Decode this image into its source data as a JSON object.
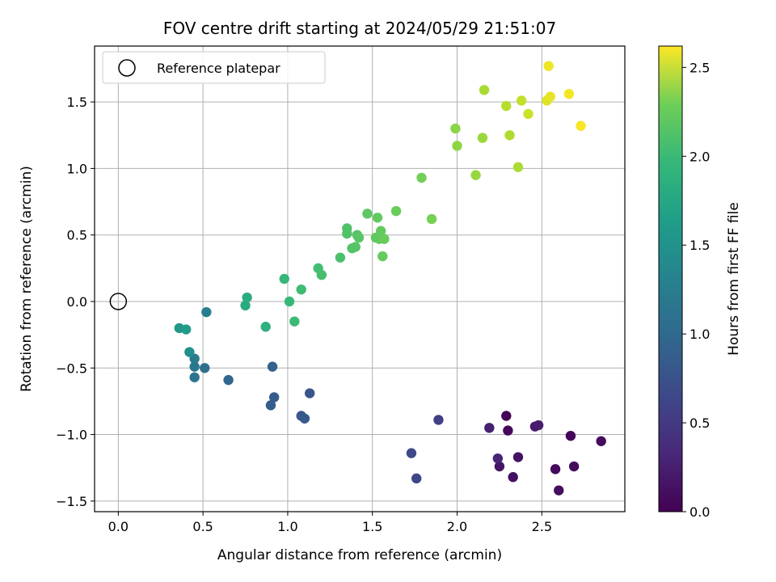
{
  "chart_data": {
    "type": "scatter",
    "title": "FOV centre drift starting at 2024/05/29 21:51:07",
    "xlabel": "Angular distance from reference (arcmin)",
    "ylabel": "Rotation from reference (arcmin)",
    "xlim": [
      -0.14,
      2.99
    ],
    "ylim": [
      -1.58,
      1.92
    ],
    "xticks": [
      0.0,
      0.5,
      1.0,
      1.5,
      2.0,
      2.5
    ],
    "yticks": [
      -1.5,
      -1.0,
      -0.5,
      0.0,
      0.5,
      1.0,
      1.5
    ],
    "grid": true,
    "legend": {
      "placement": "upper-left",
      "label": "Reference platepar"
    },
    "reference_point": {
      "x": 0.0,
      "y": 0.0
    },
    "colorbar": {
      "label": "Hours from first FF file",
      "range": [
        0.0,
        2.62
      ],
      "ticks": [
        0.0,
        0.5,
        1.0,
        1.5,
        2.0,
        2.5
      ],
      "colormap": "viridis"
    },
    "points": [
      {
        "x": 2.29,
        "y": -0.86,
        "c": 0.02
      },
      {
        "x": 2.67,
        "y": -1.01,
        "c": 0.04
      },
      {
        "x": 2.85,
        "y": -1.05,
        "c": 0.07
      },
      {
        "x": 2.3,
        "y": -0.97,
        "c": 0.05
      },
      {
        "x": 2.58,
        "y": -1.26,
        "c": 0.06
      },
      {
        "x": 2.69,
        "y": -1.24,
        "c": 0.08
      },
      {
        "x": 2.6,
        "y": -1.42,
        "c": 0.1
      },
      {
        "x": 2.33,
        "y": -1.32,
        "c": 0.11
      },
      {
        "x": 2.36,
        "y": -1.17,
        "c": 0.13
      },
      {
        "x": 2.25,
        "y": -1.24,
        "c": 0.15
      },
      {
        "x": 2.46,
        "y": -0.94,
        "c": 0.18
      },
      {
        "x": 2.48,
        "y": -0.93,
        "c": 0.21
      },
      {
        "x": 2.19,
        "y": -0.95,
        "c": 0.24
      },
      {
        "x": 2.24,
        "y": -1.18,
        "c": 0.27
      },
      {
        "x": 1.89,
        "y": -0.89,
        "c": 0.5
      },
      {
        "x": 1.76,
        "y": -1.33,
        "c": 0.55
      },
      {
        "x": 1.73,
        "y": -1.14,
        "c": 0.58
      },
      {
        "x": 1.13,
        "y": -0.69,
        "c": 0.7
      },
      {
        "x": 1.08,
        "y": -0.86,
        "c": 0.72
      },
      {
        "x": 1.1,
        "y": -0.88,
        "c": 0.74
      },
      {
        "x": 0.92,
        "y": -0.72,
        "c": 0.76
      },
      {
        "x": 0.9,
        "y": -0.78,
        "c": 0.78
      },
      {
        "x": 0.91,
        "y": -0.49,
        "c": 0.82
      },
      {
        "x": 0.65,
        "y": -0.59,
        "c": 0.85
      },
      {
        "x": 0.51,
        "y": -0.5,
        "c": 0.95
      },
      {
        "x": 0.45,
        "y": -0.57,
        "c": 1.0
      },
      {
        "x": 0.45,
        "y": -0.49,
        "c": 1.05
      },
      {
        "x": 0.45,
        "y": -0.43,
        "c": 1.1
      },
      {
        "x": 0.52,
        "y": -0.08,
        "c": 1.12
      },
      {
        "x": 0.42,
        "y": -0.38,
        "c": 1.3
      },
      {
        "x": 0.36,
        "y": -0.2,
        "c": 1.38
      },
      {
        "x": 0.4,
        "y": -0.21,
        "c": 1.42
      },
      {
        "x": 0.75,
        "y": -0.03,
        "c": 1.6
      },
      {
        "x": 0.76,
        "y": 0.03,
        "c": 1.62
      },
      {
        "x": 0.87,
        "y": -0.19,
        "c": 1.66
      },
      {
        "x": 0.98,
        "y": 0.17,
        "c": 1.75
      },
      {
        "x": 1.01,
        "y": 0.0,
        "c": 1.76
      },
      {
        "x": 1.04,
        "y": -0.15,
        "c": 1.78
      },
      {
        "x": 1.08,
        "y": 0.09,
        "c": 1.8
      },
      {
        "x": 1.18,
        "y": 0.25,
        "c": 1.82
      },
      {
        "x": 1.2,
        "y": 0.2,
        "c": 1.84
      },
      {
        "x": 1.31,
        "y": 0.33,
        "c": 1.86
      },
      {
        "x": 1.35,
        "y": 0.55,
        "c": 1.88
      },
      {
        "x": 1.35,
        "y": 0.51,
        "c": 1.89
      },
      {
        "x": 1.38,
        "y": 0.4,
        "c": 1.9
      },
      {
        "x": 1.4,
        "y": 0.41,
        "c": 1.91
      },
      {
        "x": 1.41,
        "y": 0.5,
        "c": 1.92
      },
      {
        "x": 1.42,
        "y": 0.48,
        "c": 1.93
      },
      {
        "x": 1.47,
        "y": 0.66,
        "c": 1.95
      },
      {
        "x": 1.52,
        "y": 0.48,
        "c": 1.96
      },
      {
        "x": 1.53,
        "y": 0.63,
        "c": 1.97
      },
      {
        "x": 1.54,
        "y": 0.47,
        "c": 1.97
      },
      {
        "x": 1.55,
        "y": 0.53,
        "c": 1.98
      },
      {
        "x": 1.56,
        "y": 0.34,
        "c": 1.99
      },
      {
        "x": 1.57,
        "y": 0.47,
        "c": 2.0
      },
      {
        "x": 1.64,
        "y": 0.68,
        "c": 2.01
      },
      {
        "x": 1.79,
        "y": 0.93,
        "c": 2.05
      },
      {
        "x": 1.85,
        "y": 0.62,
        "c": 2.07
      },
      {
        "x": 1.99,
        "y": 1.3,
        "c": 2.15
      },
      {
        "x": 2.0,
        "y": 1.17,
        "c": 2.17
      },
      {
        "x": 2.11,
        "y": 0.95,
        "c": 2.2
      },
      {
        "x": 2.15,
        "y": 1.23,
        "c": 2.22
      },
      {
        "x": 2.16,
        "y": 1.59,
        "c": 2.27
      },
      {
        "x": 2.29,
        "y": 1.47,
        "c": 2.33
      },
      {
        "x": 2.31,
        "y": 1.25,
        "c": 2.3
      },
      {
        "x": 2.36,
        "y": 1.01,
        "c": 2.28
      },
      {
        "x": 2.38,
        "y": 1.51,
        "c": 2.38
      },
      {
        "x": 2.42,
        "y": 1.41,
        "c": 2.42
      },
      {
        "x": 2.53,
        "y": 1.51,
        "c": 2.5
      },
      {
        "x": 2.54,
        "y": 1.77,
        "c": 2.56
      },
      {
        "x": 2.55,
        "y": 1.54,
        "c": 2.53
      },
      {
        "x": 2.66,
        "y": 1.56,
        "c": 2.58
      },
      {
        "x": 2.73,
        "y": 1.32,
        "c": 2.6
      }
    ]
  }
}
